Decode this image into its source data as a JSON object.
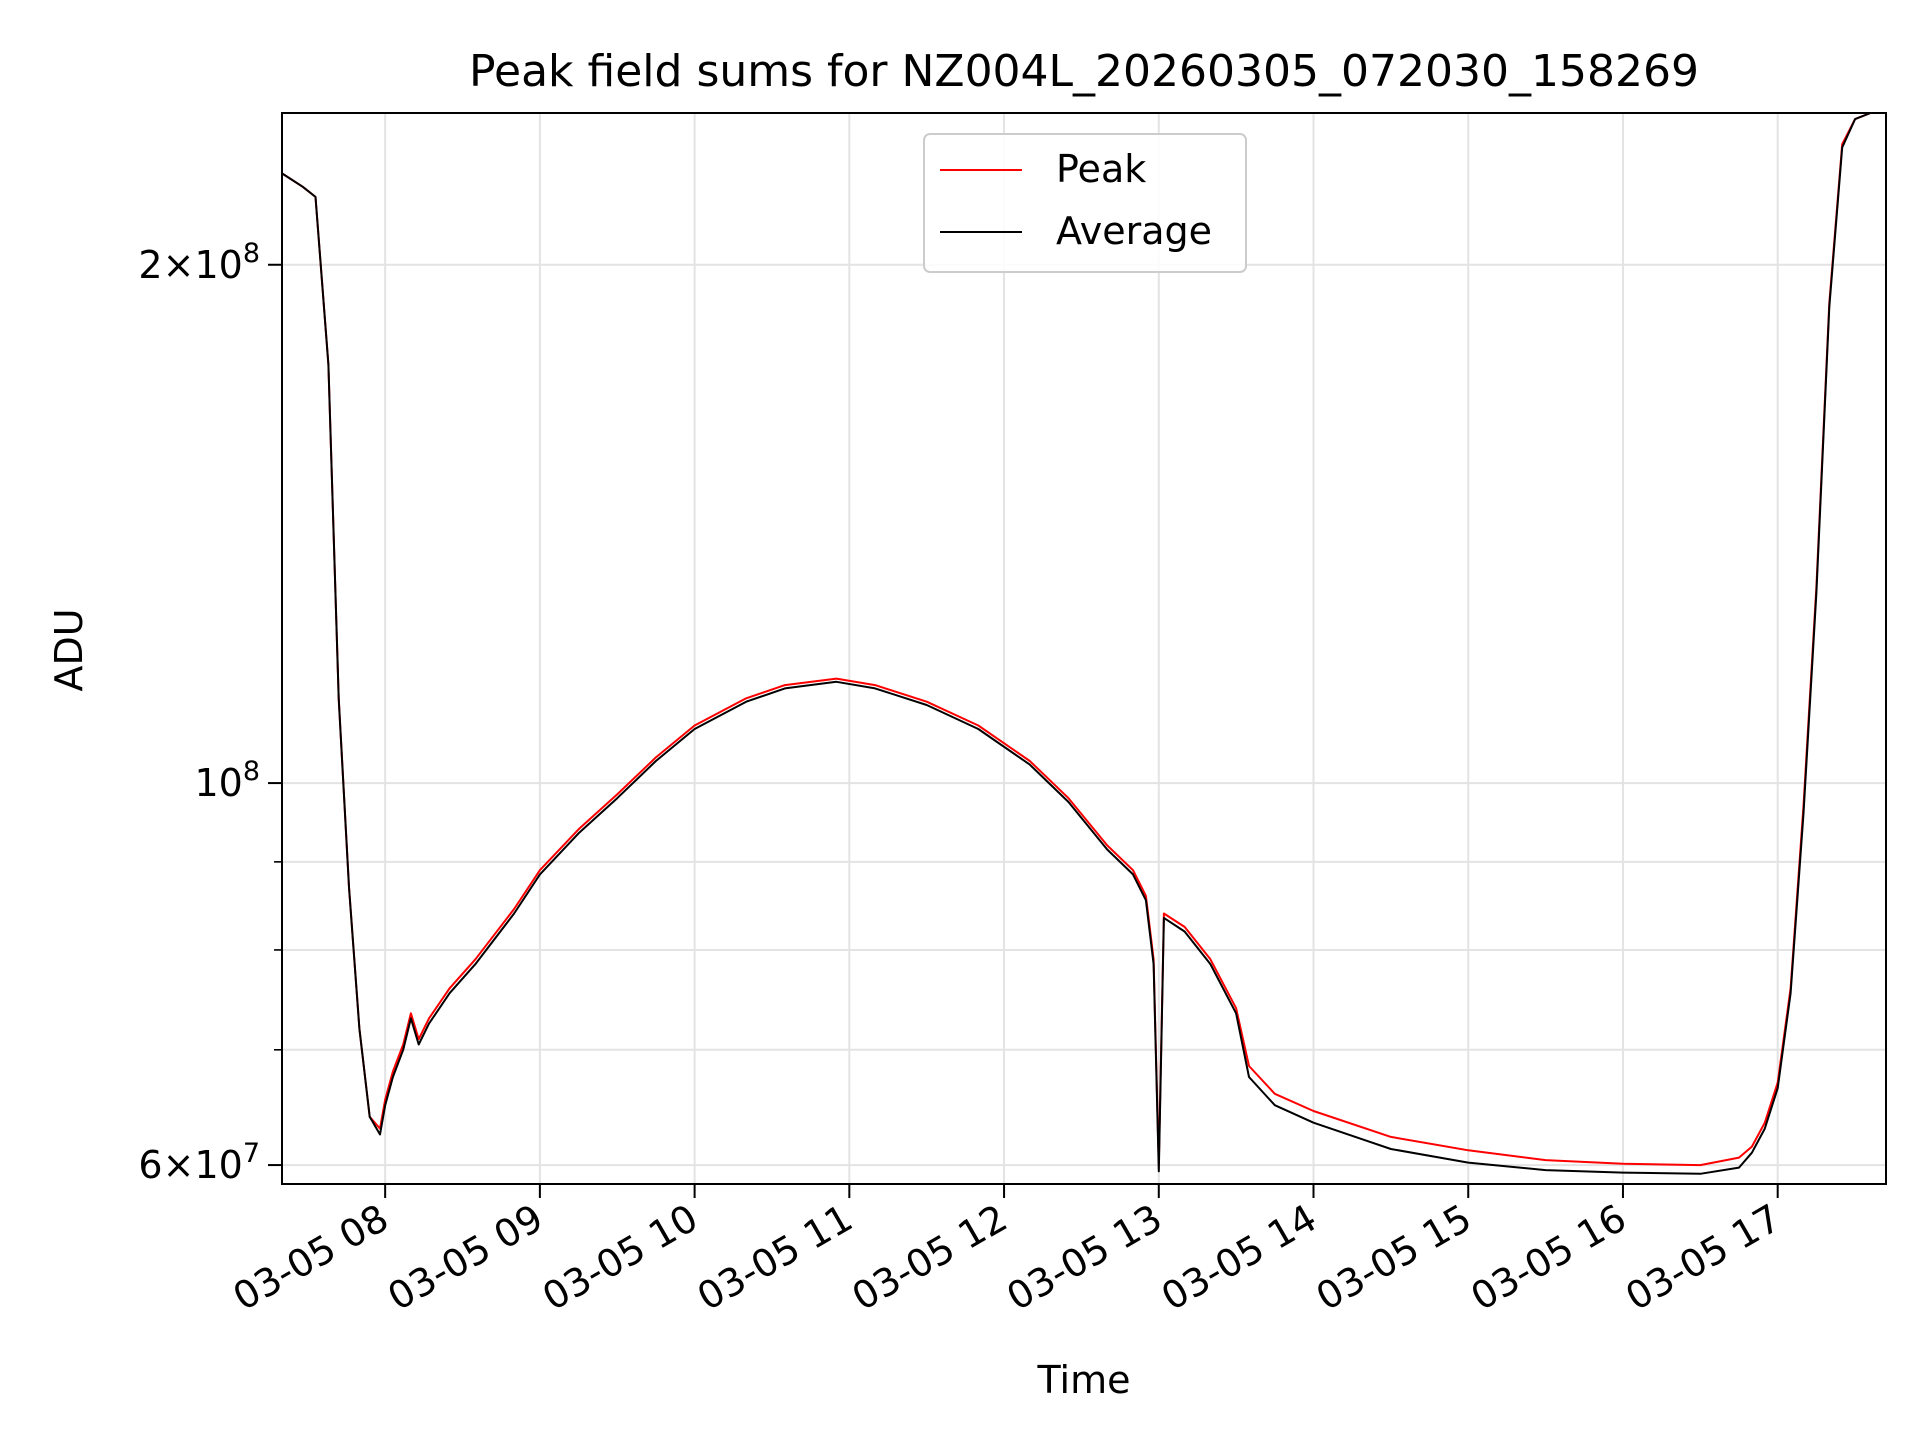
{
  "chart_data": {
    "type": "line",
    "title": "Peak field sums for NZ004L_20260305_072030_158269",
    "xlabel": "Time",
    "ylabel": "ADU",
    "y_scale": "log",
    "xlim": [
      "2026-03-05 07:20",
      "2026-03-05 17:42"
    ],
    "ylim": [
      58500000,
      245000000
    ],
    "grid": true,
    "legend_position": "top-center",
    "x_ticks": [
      "03-05 08",
      "03-05 09",
      "03-05 10",
      "03-05 11",
      "03-05 12",
      "03-05 13",
      "03-05 14",
      "03-05 15",
      "03-05 16",
      "03-05 17"
    ],
    "y_ticks_major": [
      {
        "value": 60000000,
        "mantissa": "6",
        "base": "10",
        "exp": "7"
      },
      {
        "value": 100000000,
        "mantissa": "",
        "base": "10",
        "exp": "8"
      },
      {
        "value": 200000000,
        "mantissa": "2",
        "base": "10",
        "exp": "8"
      }
    ],
    "y_ticks_minor": [
      70000000,
      80000000,
      90000000
    ],
    "series": [
      {
        "name": "Peak",
        "color": "#ff0000",
        "x": [
          "2026-03-05 07:20",
          "2026-03-05 07:28",
          "2026-03-05 07:33",
          "2026-03-05 07:38",
          "2026-03-05 07:42",
          "2026-03-05 07:46",
          "2026-03-05 07:50",
          "2026-03-05 07:54",
          "2026-03-05 07:58",
          "2026-03-05 08:00",
          "2026-03-05 08:03",
          "2026-03-05 08:07",
          "2026-03-05 08:10",
          "2026-03-05 08:13",
          "2026-03-05 08:17",
          "2026-03-05 08:25",
          "2026-03-05 08:35",
          "2026-03-05 08:50",
          "2026-03-05 09:00",
          "2026-03-05 09:15",
          "2026-03-05 09:30",
          "2026-03-05 09:45",
          "2026-03-05 10:00",
          "2026-03-05 10:20",
          "2026-03-05 10:35",
          "2026-03-05 10:55",
          "2026-03-05 11:10",
          "2026-03-05 11:30",
          "2026-03-05 11:50",
          "2026-03-05 12:10",
          "2026-03-05 12:25",
          "2026-03-05 12:40",
          "2026-03-05 12:50",
          "2026-03-05 12:55",
          "2026-03-05 12:58",
          "2026-03-05 13:00",
          "2026-03-05 13:02",
          "2026-03-05 13:10",
          "2026-03-05 13:20",
          "2026-03-05 13:30",
          "2026-03-05 13:35",
          "2026-03-05 13:45",
          "2026-03-05 14:00",
          "2026-03-05 14:30",
          "2026-03-05 15:00",
          "2026-03-05 15:30",
          "2026-03-05 16:00",
          "2026-03-05 16:30",
          "2026-03-05 16:45",
          "2026-03-05 16:50",
          "2026-03-05 16:55",
          "2026-03-05 17:00",
          "2026-03-05 17:05",
          "2026-03-05 17:10",
          "2026-03-05 17:15",
          "2026-03-05 17:20",
          "2026-03-05 17:25",
          "2026-03-05 17:30",
          "2026-03-05 17:36",
          "2026-03-05 17:42"
        ],
        "values": [
          226000000,
          222000000,
          219000000,
          175000000,
          112000000,
          87000000,
          72000000,
          64000000,
          63000000,
          65500000,
          68000000,
          70500000,
          73500000,
          71000000,
          73000000,
          76000000,
          79000000,
          84500000,
          89000000,
          94000000,
          98500000,
          103500000,
          108000000,
          112000000,
          114000000,
          115000000,
          114000000,
          111500000,
          108000000,
          103000000,
          98000000,
          92000000,
          89000000,
          86000000,
          79000000,
          60000000,
          84000000,
          82500000,
          79000000,
          74000000,
          68500000,
          66000000,
          64500000,
          62300000,
          61200000,
          60400000,
          60100000,
          60000000,
          60600000,
          61500000,
          63500000,
          67000000,
          76000000,
          97000000,
          130000000,
          190000000,
          235000000,
          243000000,
          245000000,
          245000000
        ]
      },
      {
        "name": "Average",
        "color": "#000000",
        "x": [
          "2026-03-05 07:20",
          "2026-03-05 07:28",
          "2026-03-05 07:33",
          "2026-03-05 07:38",
          "2026-03-05 07:42",
          "2026-03-05 07:46",
          "2026-03-05 07:50",
          "2026-03-05 07:54",
          "2026-03-05 07:58",
          "2026-03-05 08:00",
          "2026-03-05 08:03",
          "2026-03-05 08:07",
          "2026-03-05 08:10",
          "2026-03-05 08:13",
          "2026-03-05 08:17",
          "2026-03-05 08:25",
          "2026-03-05 08:35",
          "2026-03-05 08:50",
          "2026-03-05 09:00",
          "2026-03-05 09:15",
          "2026-03-05 09:30",
          "2026-03-05 09:45",
          "2026-03-05 10:00",
          "2026-03-05 10:20",
          "2026-03-05 10:35",
          "2026-03-05 10:55",
          "2026-03-05 11:10",
          "2026-03-05 11:30",
          "2026-03-05 11:50",
          "2026-03-05 12:10",
          "2026-03-05 12:25",
          "2026-03-05 12:40",
          "2026-03-05 12:50",
          "2026-03-05 12:55",
          "2026-03-05 12:58",
          "2026-03-05 13:00",
          "2026-03-05 13:02",
          "2026-03-05 13:10",
          "2026-03-05 13:20",
          "2026-03-05 13:30",
          "2026-03-05 13:35",
          "2026-03-05 13:45",
          "2026-03-05 14:00",
          "2026-03-05 14:30",
          "2026-03-05 15:00",
          "2026-03-05 15:30",
          "2026-03-05 16:00",
          "2026-03-05 16:30",
          "2026-03-05 16:45",
          "2026-03-05 16:50",
          "2026-03-05 16:55",
          "2026-03-05 17:00",
          "2026-03-05 17:05",
          "2026-03-05 17:10",
          "2026-03-05 17:15",
          "2026-03-05 17:20",
          "2026-03-05 17:25",
          "2026-03-05 17:30",
          "2026-03-05 17:36",
          "2026-03-05 17:42"
        ],
        "values": [
          226000000,
          222000000,
          219000000,
          175000000,
          112000000,
          87000000,
          72000000,
          64000000,
          62500000,
          65000000,
          67500000,
          70000000,
          73000000,
          70500000,
          72500000,
          75500000,
          78500000,
          84000000,
          88500000,
          93500000,
          98000000,
          103000000,
          107500000,
          111500000,
          113500000,
          114500000,
          113500000,
          111000000,
          107500000,
          102500000,
          97500000,
          91500000,
          88500000,
          85500000,
          78500000,
          59500000,
          83500000,
          82000000,
          78500000,
          73500000,
          67500000,
          65000000,
          63500000,
          61300000,
          60200000,
          59600000,
          59400000,
          59300000,
          59800000,
          61000000,
          63000000,
          66500000,
          75500000,
          96000000,
          129000000,
          189000000,
          234000000,
          243000000,
          245000000,
          245000000
        ]
      }
    ]
  }
}
